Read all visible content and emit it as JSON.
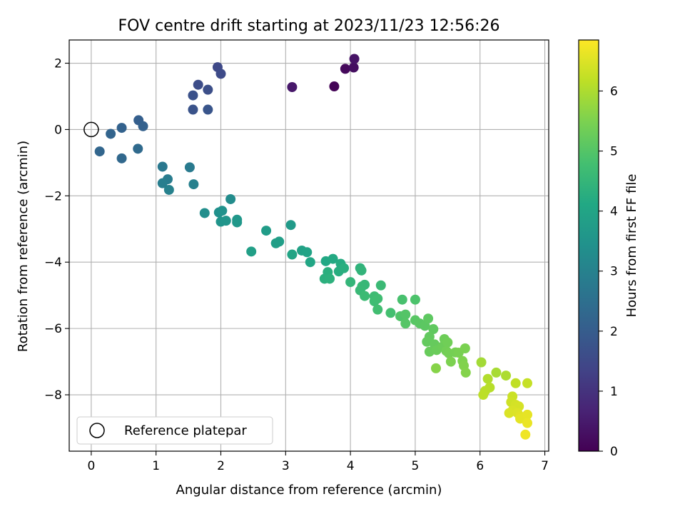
{
  "chart_data": {
    "type": "scatter",
    "title": "FOV centre drift starting at 2023/11/23 12:56:26",
    "xlabel": "Angular distance from reference (arcmin)",
    "ylabel": "Rotation from reference (arcmin)",
    "xlim": [
      -0.34,
      7.06
    ],
    "ylim": [
      -9.7,
      2.7
    ],
    "xticks": [
      0,
      1,
      2,
      3,
      4,
      5,
      6,
      7
    ],
    "xtick_labels": [
      "0",
      "1",
      "2",
      "3",
      "4",
      "5",
      "6",
      "7"
    ],
    "yticks": [
      2,
      0,
      -2,
      -4,
      -6,
      -8
    ],
    "ytick_labels": [
      "2",
      "0",
      "−2",
      "−4",
      "−6",
      "−8"
    ],
    "grid": true,
    "colormap": "viridis",
    "colorbar": {
      "label": "Hours from first FF file",
      "range": [
        0,
        6.85
      ],
      "ticks": [
        0,
        1,
        2,
        3,
        4,
        5,
        6
      ],
      "tick_labels": [
        "0",
        "1",
        "2",
        "3",
        "4",
        "5",
        "6"
      ]
    },
    "legend": {
      "position": "lower-left",
      "entries": [
        {
          "label": "Reference platepar",
          "marker": "open-circle"
        }
      ]
    },
    "reference_point": {
      "x": 0,
      "y": 0
    },
    "points": [
      {
        "x": 3.75,
        "y": 1.3,
        "c": 0.05
      },
      {
        "x": 3.92,
        "y": 1.83,
        "c": 0.15
      },
      {
        "x": 4.05,
        "y": 1.87,
        "c": 0.25
      },
      {
        "x": 4.06,
        "y": 2.13,
        "c": 0.35
      },
      {
        "x": 3.1,
        "y": 1.28,
        "c": 0.45
      },
      {
        "x": 1.95,
        "y": 1.88,
        "c": 1.5
      },
      {
        "x": 2.0,
        "y": 1.68,
        "c": 1.55
      },
      {
        "x": 1.65,
        "y": 1.35,
        "c": 1.6
      },
      {
        "x": 1.8,
        "y": 1.2,
        "c": 1.65
      },
      {
        "x": 1.57,
        "y": 1.03,
        "c": 1.7
      },
      {
        "x": 1.57,
        "y": 0.6,
        "c": 1.75
      },
      {
        "x": 1.8,
        "y": 0.6,
        "c": 1.8
      },
      {
        "x": 0.73,
        "y": 0.28,
        "c": 2.05
      },
      {
        "x": 0.8,
        "y": 0.1,
        "c": 2.1
      },
      {
        "x": 0.47,
        "y": 0.05,
        "c": 2.15
      },
      {
        "x": 0.3,
        "y": -0.13,
        "c": 2.2
      },
      {
        "x": 0.13,
        "y": -0.66,
        "c": 2.25
      },
      {
        "x": 0.47,
        "y": -0.87,
        "c": 2.3
      },
      {
        "x": 0.72,
        "y": -0.58,
        "c": 2.35
      },
      {
        "x": 1.1,
        "y": -1.12,
        "c": 2.75
      },
      {
        "x": 1.52,
        "y": -1.14,
        "c": 2.8
      },
      {
        "x": 1.18,
        "y": -1.5,
        "c": 2.85
      },
      {
        "x": 1.1,
        "y": -1.62,
        "c": 2.9
      },
      {
        "x": 1.58,
        "y": -1.65,
        "c": 2.95
      },
      {
        "x": 1.2,
        "y": -1.82,
        "c": 3.0
      },
      {
        "x": 2.15,
        "y": -2.1,
        "c": 3.3
      },
      {
        "x": 1.75,
        "y": -2.52,
        "c": 3.35
      },
      {
        "x": 1.97,
        "y": -2.5,
        "c": 3.4
      },
      {
        "x": 2.02,
        "y": -2.45,
        "c": 3.45
      },
      {
        "x": 2.0,
        "y": -2.78,
        "c": 3.5
      },
      {
        "x": 2.08,
        "y": -2.75,
        "c": 3.55
      },
      {
        "x": 2.25,
        "y": -2.72,
        "c": 3.6
      },
      {
        "x": 2.25,
        "y": -2.8,
        "c": 3.62
      },
      {
        "x": 3.08,
        "y": -2.88,
        "c": 3.7
      },
      {
        "x": 2.7,
        "y": -3.05,
        "c": 3.75
      },
      {
        "x": 2.9,
        "y": -3.38,
        "c": 3.8
      },
      {
        "x": 2.85,
        "y": -3.43,
        "c": 3.82
      },
      {
        "x": 2.47,
        "y": -3.68,
        "c": 3.85
      },
      {
        "x": 3.25,
        "y": -3.65,
        "c": 3.9
      },
      {
        "x": 3.33,
        "y": -3.7,
        "c": 3.95
      },
      {
        "x": 3.1,
        "y": -3.77,
        "c": 4.0
      },
      {
        "x": 3.38,
        "y": -4.0,
        "c": 4.05
      },
      {
        "x": 3.62,
        "y": -3.97,
        "c": 4.1
      },
      {
        "x": 3.73,
        "y": -3.9,
        "c": 4.15
      },
      {
        "x": 3.85,
        "y": -4.05,
        "c": 4.2
      },
      {
        "x": 3.82,
        "y": -4.28,
        "c": 4.25
      },
      {
        "x": 3.9,
        "y": -4.18,
        "c": 4.28
      },
      {
        "x": 3.65,
        "y": -4.3,
        "c": 4.3
      },
      {
        "x": 3.6,
        "y": -4.5,
        "c": 4.32
      },
      {
        "x": 3.68,
        "y": -4.5,
        "c": 4.35
      },
      {
        "x": 4.15,
        "y": -4.18,
        "c": 4.4
      },
      {
        "x": 4.17,
        "y": -4.25,
        "c": 4.45
      },
      {
        "x": 4.0,
        "y": -4.6,
        "c": 4.5
      },
      {
        "x": 4.22,
        "y": -4.68,
        "c": 4.55
      },
      {
        "x": 4.18,
        "y": -4.73,
        "c": 4.57
      },
      {
        "x": 4.15,
        "y": -4.85,
        "c": 4.6
      },
      {
        "x": 4.47,
        "y": -4.7,
        "c": 4.62
      },
      {
        "x": 4.22,
        "y": -5.02,
        "c": 4.65
      },
      {
        "x": 4.37,
        "y": -5.03,
        "c": 4.68
      },
      {
        "x": 4.37,
        "y": -5.18,
        "c": 4.7
      },
      {
        "x": 4.42,
        "y": -5.1,
        "c": 4.72
      },
      {
        "x": 4.42,
        "y": -5.43,
        "c": 4.75
      },
      {
        "x": 4.62,
        "y": -5.53,
        "c": 4.8
      },
      {
        "x": 4.8,
        "y": -5.13,
        "c": 4.85
      },
      {
        "x": 5.0,
        "y": -5.13,
        "c": 4.9
      },
      {
        "x": 4.77,
        "y": -5.63,
        "c": 4.95
      },
      {
        "x": 4.85,
        "y": -5.58,
        "c": 5.0
      },
      {
        "x": 4.85,
        "y": -5.85,
        "c": 5.02
      },
      {
        "x": 5.0,
        "y": -5.75,
        "c": 5.05
      },
      {
        "x": 5.07,
        "y": -5.85,
        "c": 5.08
      },
      {
        "x": 5.15,
        "y": -5.92,
        "c": 5.1
      },
      {
        "x": 5.2,
        "y": -5.7,
        "c": 5.12
      },
      {
        "x": 5.28,
        "y": -6.02,
        "c": 5.15
      },
      {
        "x": 5.22,
        "y": -6.25,
        "c": 5.18
      },
      {
        "x": 5.18,
        "y": -6.4,
        "c": 5.2
      },
      {
        "x": 5.3,
        "y": -6.48,
        "c": 5.22
      },
      {
        "x": 5.22,
        "y": -6.7,
        "c": 5.25
      },
      {
        "x": 5.33,
        "y": -6.65,
        "c": 5.28
      },
      {
        "x": 5.42,
        "y": -6.55,
        "c": 5.3
      },
      {
        "x": 5.45,
        "y": -6.32,
        "c": 5.32
      },
      {
        "x": 5.5,
        "y": -6.42,
        "c": 5.35
      },
      {
        "x": 5.48,
        "y": -6.68,
        "c": 5.38
      },
      {
        "x": 5.52,
        "y": -6.75,
        "c": 5.4
      },
      {
        "x": 5.62,
        "y": -6.72,
        "c": 5.42
      },
      {
        "x": 5.67,
        "y": -6.73,
        "c": 5.45
      },
      {
        "x": 5.77,
        "y": -6.6,
        "c": 5.48
      },
      {
        "x": 5.55,
        "y": -7.0,
        "c": 5.5
      },
      {
        "x": 5.73,
        "y": -6.98,
        "c": 5.52
      },
      {
        "x": 5.75,
        "y": -7.12,
        "c": 5.55
      },
      {
        "x": 5.78,
        "y": -7.33,
        "c": 5.58
      },
      {
        "x": 5.32,
        "y": -7.2,
        "c": 5.6
      },
      {
        "x": 6.02,
        "y": -7.02,
        "c": 5.9
      },
      {
        "x": 6.25,
        "y": -7.33,
        "c": 5.95
      },
      {
        "x": 6.4,
        "y": -7.42,
        "c": 6.0
      },
      {
        "x": 6.12,
        "y": -7.52,
        "c": 6.05
      },
      {
        "x": 6.15,
        "y": -7.78,
        "c": 6.1
      },
      {
        "x": 6.08,
        "y": -7.88,
        "c": 6.12
      },
      {
        "x": 6.05,
        "y": -8.0,
        "c": 6.15
      },
      {
        "x": 6.55,
        "y": -7.65,
        "c": 6.2
      },
      {
        "x": 6.73,
        "y": -7.65,
        "c": 6.25
      },
      {
        "x": 6.5,
        "y": -8.05,
        "c": 6.3
      },
      {
        "x": 6.48,
        "y": -8.22,
        "c": 6.35
      },
      {
        "x": 6.55,
        "y": -8.3,
        "c": 6.4
      },
      {
        "x": 6.6,
        "y": -8.35,
        "c": 6.42
      },
      {
        "x": 6.5,
        "y": -8.48,
        "c": 6.45
      },
      {
        "x": 6.45,
        "y": -8.55,
        "c": 6.48
      },
      {
        "x": 6.58,
        "y": -8.55,
        "c": 6.5
      },
      {
        "x": 6.62,
        "y": -8.65,
        "c": 6.55
      },
      {
        "x": 6.62,
        "y": -8.72,
        "c": 6.58
      },
      {
        "x": 6.73,
        "y": -8.6,
        "c": 6.6
      },
      {
        "x": 6.73,
        "y": -8.85,
        "c": 6.65
      },
      {
        "x": 6.7,
        "y": -9.2,
        "c": 6.7
      }
    ]
  }
}
